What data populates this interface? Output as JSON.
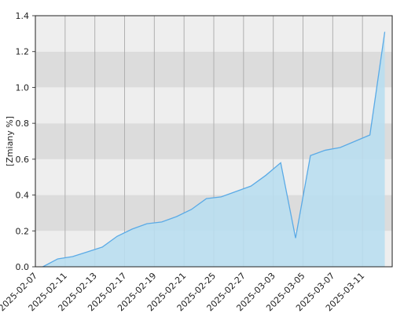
{
  "chart_data": {
    "type": "area",
    "y_label": "[Zmiany %]",
    "categories": [
      "2025-02-07",
      null,
      "2025-02-11",
      null,
      "2025-02-13",
      null,
      "2025-02-17",
      null,
      "2025-02-19",
      null,
      "2025-02-21",
      null,
      "2025-02-25",
      null,
      "2025-02-27",
      null,
      "2025-03-03",
      null,
      "2025-03-05",
      null,
      "2025-03-07",
      null,
      "2025-03-11",
      null
    ],
    "values": [
      0,
      0.044,
      0.057,
      0.083,
      0.11,
      0.17,
      0.21,
      0.24,
      0.25,
      0.28,
      0.32,
      0.38,
      0.39,
      0.42,
      0.45,
      0.51,
      0.58,
      0.16,
      0.62,
      0.65,
      0.665,
      0.7,
      0.735,
      1.31
    ],
    "color": "#5aaae6",
    "fill": "#b9deef",
    "ylim": [
      0,
      1.4
    ],
    "yticks": [
      {
        "value": 0,
        "label": "0.0"
      },
      0.2,
      0.4,
      0.6,
      0.8,
      {
        "value": 1,
        "label": "1.0"
      },
      1.2,
      1.4
    ],
    "grid": true
  }
}
